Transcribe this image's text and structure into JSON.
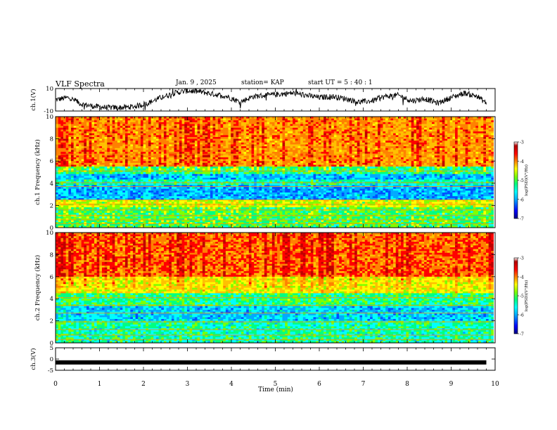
{
  "header": {
    "title": "VLF Spectra",
    "date": "Jan. 9 , 2025",
    "station": "station= KAP",
    "start_ut": "start UT = 5 : 40 : 1"
  },
  "colorbar": {
    "label": "log(PSD)(V²/Hz)",
    "ticks": [
      "-3",
      "-4",
      "-5",
      "-6",
      "-7"
    ],
    "colors": [
      "#000080",
      "#0000ff",
      "#00aaff",
      "#00ffff",
      "#00ff80",
      "#7fff00",
      "#ffff00",
      "#ff8000",
      "#ff0000",
      "#b00000",
      "#ffffff"
    ]
  },
  "chart_data": [
    {
      "type": "line",
      "name": "ch1-waveform",
      "ylabel": "ch.1(V)",
      "ylim": [
        -10,
        10
      ],
      "yticks": [
        "10",
        "-10"
      ],
      "xlim": [
        0,
        10
      ],
      "x": [
        0,
        0.3,
        0.6,
        0.9,
        1.2,
        1.5,
        1.8,
        2.1,
        2.4,
        2.7,
        3.0,
        3.3,
        3.6,
        3.9,
        4.2,
        4.5,
        4.8,
        5.1,
        5.4,
        5.7,
        6.0,
        6.3,
        6.6,
        6.9,
        7.2,
        7.5,
        7.8,
        8.1,
        8.4,
        8.7,
        9.0,
        9.3,
        9.6,
        9.8
      ],
      "y": [
        0,
        2,
        -4,
        -6,
        -7,
        -7,
        -6,
        -3,
        2,
        6,
        8,
        7,
        5,
        3,
        -2,
        3,
        4,
        5,
        6,
        4,
        2,
        3,
        1,
        -2,
        -1,
        3,
        4,
        -1,
        1,
        -3,
        2,
        6,
        3,
        -3
      ]
    },
    {
      "type": "heatmap",
      "name": "ch1-spectrogram",
      "ylabel": "ch.1 Frequency (kHz)",
      "ylim": [
        0,
        10
      ],
      "xlim": [
        0,
        10
      ],
      "yticks": [
        "0",
        "2",
        "4",
        "6",
        "8",
        "10"
      ],
      "colorbar_range": [
        -7,
        -3
      ]
    },
    {
      "type": "heatmap",
      "name": "ch2-spectrogram",
      "ylabel": "ch.2 Frequency (kHz)",
      "ylim": [
        0,
        10
      ],
      "xlim": [
        0,
        10
      ],
      "yticks": [
        "0",
        "2",
        "4",
        "6",
        "8",
        "10"
      ],
      "colorbar_range": [
        -7,
        -3
      ]
    },
    {
      "type": "line",
      "name": "ch3-waveform",
      "ylabel": "ch.3(V)",
      "ylim": [
        -5,
        5
      ],
      "yticks": [
        "5",
        "0",
        "-5"
      ],
      "xlim": [
        0,
        10
      ],
      "x": [
        0,
        9.8
      ],
      "y": [
        -1.5,
        -1.5
      ]
    }
  ],
  "xaxis": {
    "label": "Time (min)",
    "ticks": [
      "0",
      "1",
      "2",
      "3",
      "4",
      "5",
      "6",
      "7",
      "8",
      "9",
      "10"
    ]
  }
}
